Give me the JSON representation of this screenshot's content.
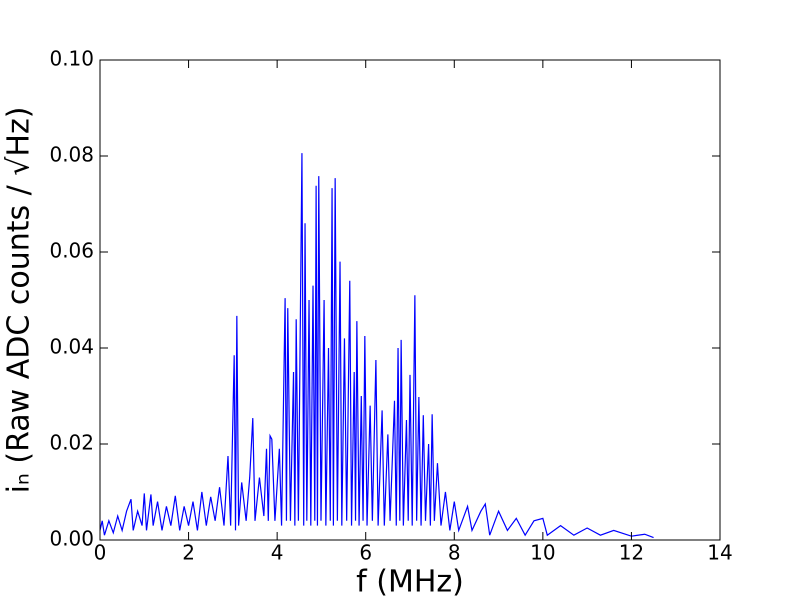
{
  "chart_data": {
    "type": "line",
    "xlabel": "f (MHz)",
    "ylabel": "iₙ  (Raw ADC counts / √Hz)",
    "x": [
      0.0,
      0.05,
      0.1,
      0.2,
      0.3,
      0.4,
      0.5,
      0.6,
      0.7,
      0.75,
      0.85,
      0.95,
      1.0,
      1.05,
      1.15,
      1.2,
      1.3,
      1.4,
      1.5,
      1.6,
      1.7,
      1.8,
      1.9,
      2.0,
      2.1,
      2.2,
      2.3,
      2.4,
      2.5,
      2.6,
      2.7,
      2.8,
      2.89,
      2.95,
      3.03,
      3.06,
      3.09,
      3.13,
      3.2,
      3.3,
      3.38,
      3.45,
      3.5,
      3.6,
      3.7,
      3.76,
      3.8,
      3.84,
      3.88,
      3.95,
      4.05,
      4.1,
      4.18,
      4.21,
      4.24,
      4.3,
      4.37,
      4.4,
      4.43,
      4.48,
      4.56,
      4.6,
      4.63,
      4.67,
      4.72,
      4.76,
      4.81,
      4.85,
      4.88,
      4.91,
      4.94,
      4.99,
      5.06,
      5.1,
      5.16,
      5.2,
      5.24,
      5.27,
      5.31,
      5.36,
      5.42,
      5.46,
      5.52,
      5.57,
      5.64,
      5.68,
      5.74,
      5.77,
      5.8,
      5.85,
      5.9,
      5.94,
      5.98,
      6.03,
      6.1,
      6.15,
      6.23,
      6.28,
      6.37,
      6.42,
      6.5,
      6.55,
      6.65,
      6.69,
      6.73,
      6.77,
      6.8,
      6.85,
      6.92,
      6.96,
      7.0,
      7.05,
      7.11,
      7.15,
      7.2,
      7.25,
      7.3,
      7.35,
      7.42,
      7.46,
      7.5,
      7.55,
      7.62,
      7.7,
      7.8,
      7.9,
      8.0,
      8.1,
      8.3,
      8.4,
      8.6,
      8.7,
      8.8,
      9.0,
      9.2,
      9.4,
      9.6,
      9.8,
      10.0,
      10.1,
      10.4,
      10.7,
      11.0,
      11.3,
      11.6,
      12.0,
      12.3,
      12.5
    ],
    "series": [
      {
        "color": "#0000ff",
        "values": [
          0.002,
          0.004,
          0.001,
          0.004,
          0.0015,
          0.005,
          0.002,
          0.006,
          0.0085,
          0.002,
          0.006,
          0.003,
          0.0097,
          0.002,
          0.0095,
          0.003,
          0.008,
          0.002,
          0.007,
          0.003,
          0.0092,
          0.002,
          0.007,
          0.003,
          0.008,
          0.002,
          0.01,
          0.003,
          0.009,
          0.004,
          0.011,
          0.003,
          0.0175,
          0.003,
          0.0385,
          0.002,
          0.0467,
          0.003,
          0.012,
          0.004,
          0.013,
          0.0254,
          0.004,
          0.013,
          0.005,
          0.019,
          0.004,
          0.0217,
          0.021,
          0.004,
          0.019,
          0.003,
          0.0504,
          0.004,
          0.0483,
          0.004,
          0.035,
          0.003,
          0.046,
          0.004,
          0.0806,
          0.003,
          0.066,
          0.004,
          0.05,
          0.003,
          0.053,
          0.004,
          0.0738,
          0.003,
          0.0758,
          0.004,
          0.05,
          0.003,
          0.04,
          0.004,
          0.0733,
          0.003,
          0.0754,
          0.004,
          0.058,
          0.003,
          0.042,
          0.004,
          0.054,
          0.003,
          0.035,
          0.004,
          0.0456,
          0.003,
          0.03,
          0.004,
          0.0425,
          0.003,
          0.028,
          0.004,
          0.0375,
          0.003,
          0.027,
          0.003,
          0.022,
          0.004,
          0.029,
          0.003,
          0.04,
          0.004,
          0.0417,
          0.003,
          0.025,
          0.004,
          0.0344,
          0.003,
          0.051,
          0.004,
          0.0298,
          0.003,
          0.026,
          0.004,
          0.02,
          0.003,
          0.0262,
          0.004,
          0.016,
          0.003,
          0.01,
          0.002,
          0.008,
          0.002,
          0.007,
          0.002,
          0.006,
          0.0075,
          0.001,
          0.006,
          0.002,
          0.0045,
          0.001,
          0.004,
          0.0045,
          0.001,
          0.003,
          0.001,
          0.0025,
          0.001,
          0.002,
          0.0008,
          0.0012,
          0.0005
        ]
      }
    ],
    "xlim": [
      0,
      14
    ],
    "xticks": [
      0,
      2,
      4,
      6,
      8,
      10,
      12,
      14
    ],
    "ylim": [
      0,
      0.1
    ],
    "yticks": [
      {
        "value": 0,
        "label": "0.00"
      },
      {
        "value": 0.02,
        "label": "0.02"
      },
      {
        "value": 0.04,
        "label": "0.04"
      },
      {
        "value": 0.06,
        "label": "0.06"
      },
      {
        "value": 0.08,
        "label": "0.08"
      },
      {
        "value": 0.1,
        "label": "0.10"
      }
    ],
    "grid": false
  }
}
